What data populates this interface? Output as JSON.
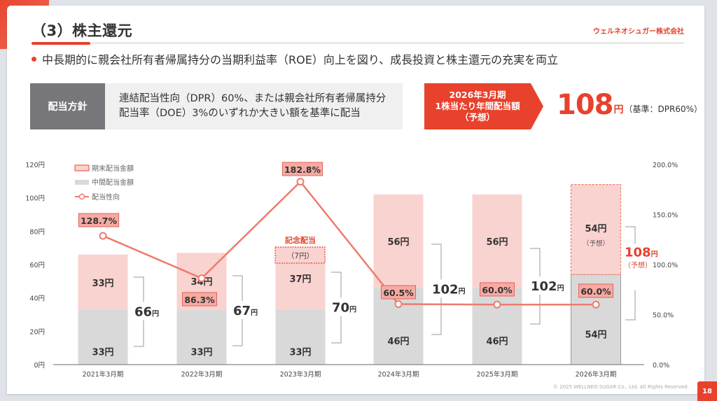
{
  "header": {
    "title": "（3）株主還元",
    "company": "ウェルネオシュガー株式会社",
    "lead": "中長期的に親会社所有者帰属持分の当期利益率（ROE）向上を図り、成長投資と株主還元の充実を両立"
  },
  "policy": {
    "label": "配当方針",
    "lines": [
      "連結配当性向（DPR）60%、または親会社所有者帰属持分",
      "配当率（DOE）3%のいずれか大きい額を基準に配当"
    ]
  },
  "forecast": {
    "lines": [
      "2026年3月期",
      "1株当たり年間配当額",
      "（予想）"
    ],
    "value": "108",
    "unit": "円",
    "basis": "（基準：DPR60%）"
  },
  "colors": {
    "accent": "#e8412c",
    "year_end": "#f9d3d0",
    "interim": "#d9d9d9",
    "line": "#ef7b6c",
    "label_box": "#f5aaa3"
  },
  "chart_data": {
    "type": "bar",
    "categories": [
      "2021年3月期",
      "2022年3月期",
      "2023年3月期",
      "2024年3月期",
      "2025年3月期",
      "2026年3月期"
    ],
    "series": [
      {
        "name": "中間配当金額",
        "values": [
          33,
          33,
          33,
          46,
          46,
          54
        ],
        "labels": [
          "33円",
          "33円",
          "33円",
          "46円",
          "46円",
          "54円"
        ]
      },
      {
        "name": "期末配当金額",
        "values": [
          33,
          34,
          37,
          56,
          56,
          54
        ],
        "labels": [
          "33円",
          "34円",
          "37円",
          "56円",
          "56円",
          "54円"
        ]
      },
      {
        "name": "配当性向",
        "type": "line",
        "axis": "right",
        "values": [
          128.7,
          86.3,
          182.8,
          60.5,
          60.0,
          60.0
        ],
        "labels": [
          "128.7%",
          "86.3%",
          "182.8%",
          "60.5%",
          "60.0%",
          "60.0%"
        ]
      }
    ],
    "totals": [
      {
        "value": "66",
        "unit": "円"
      },
      {
        "value": "67",
        "unit": "円"
      },
      {
        "value": "70",
        "unit": "円"
      },
      {
        "value": "102",
        "unit": "円"
      },
      {
        "value": "102",
        "unit": "円"
      },
      {
        "value": "108",
        "unit": "円",
        "note": "（予想）"
      }
    ],
    "forecast_note": "（予想）",
    "commemorative": {
      "title": "記念配当",
      "amount": "（7円）",
      "value": 7
    },
    "legend": [
      "期末配当金額",
      "中間配当金額",
      "配当性向"
    ],
    "ylim": [
      0,
      120
    ],
    "y2lim": [
      0,
      200
    ],
    "yticks": [
      "0円",
      "20円",
      "40円",
      "60円",
      "80円",
      "100円",
      "120円"
    ],
    "y2ticks": [
      "0.0%",
      "50.0%",
      "100.0%",
      "150.0%",
      "200.0%"
    ]
  },
  "footer": {
    "copyright": "© 2025 WELLNEO SUGAR Co., Ltd. All Rights Reserved.",
    "page": "18"
  }
}
